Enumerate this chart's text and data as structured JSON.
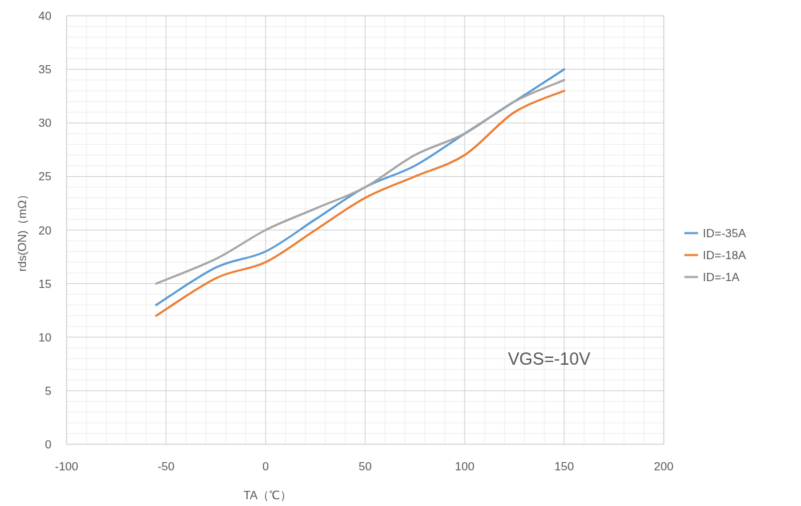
{
  "chart_data": {
    "type": "line",
    "xlabel": "TA（℃）",
    "ylabel": "rds(ON)（mΩ）",
    "xlim": [
      -100,
      200
    ],
    "xticks": [
      -100,
      -50,
      0,
      50,
      100,
      150,
      200
    ],
    "ylim": [
      0,
      40
    ],
    "yticks": [
      0,
      5,
      10,
      15,
      20,
      25,
      30,
      35,
      40
    ],
    "grid": true,
    "legend": "right",
    "marker": "none",
    "line_style": "solid",
    "annotations": [
      "VGS=-10V"
    ],
    "series": [
      {
        "name": "ID=-35A",
        "color": "#5b9bd5",
        "x": [
          -55,
          -25,
          0,
          25,
          50,
          75,
          100,
          125,
          150
        ],
        "values": [
          13,
          16.5,
          18,
          21,
          24,
          26,
          29,
          32,
          35
        ]
      },
      {
        "name": "ID=-18A",
        "color": "#ed7d31",
        "x": [
          -55,
          -25,
          0,
          25,
          50,
          75,
          100,
          125,
          150
        ],
        "values": [
          12,
          15.5,
          17,
          20,
          23,
          25,
          27,
          31,
          33
        ]
      },
      {
        "name": "ID=-1A",
        "color": "#a5a5a5",
        "x": [
          -55,
          -25,
          0,
          25,
          50,
          75,
          100,
          125,
          150
        ],
        "values": [
          15,
          17.3,
          20,
          22,
          24,
          27,
          29,
          32,
          34
        ]
      }
    ]
  }
}
